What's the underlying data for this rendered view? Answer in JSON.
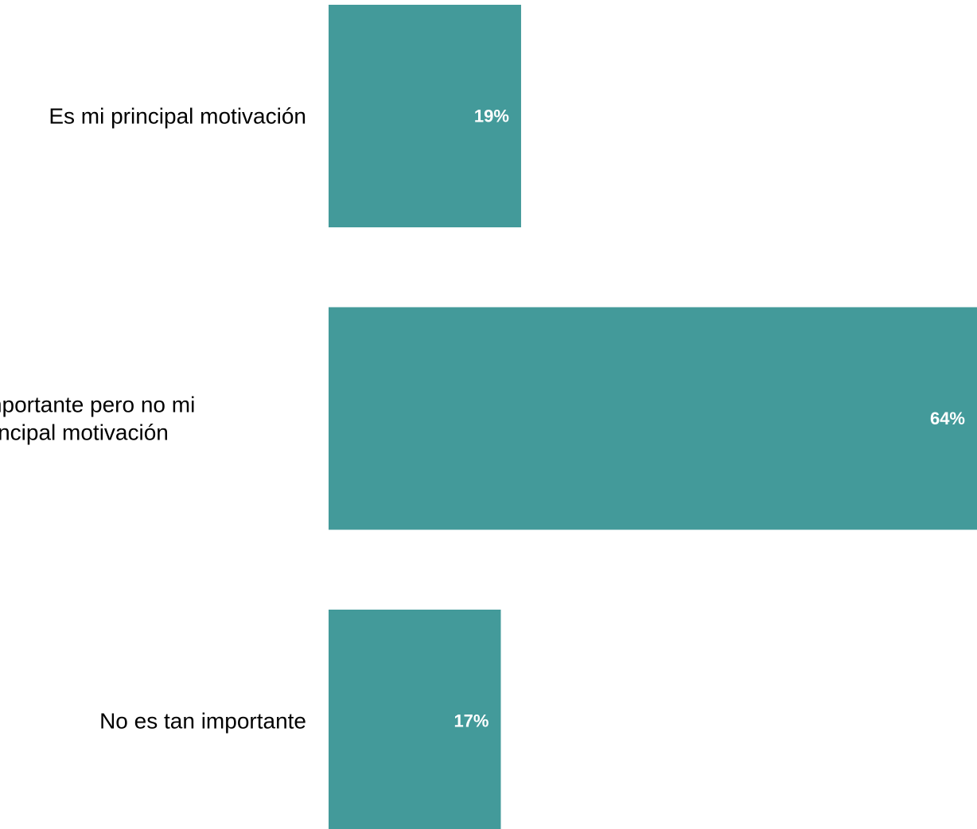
{
  "chart_data": {
    "type": "bar",
    "orientation": "horizontal",
    "categories": [
      [
        "Es mi principal motivación"
      ],
      [
        "Es importante pero no mi",
        "principal motivación"
      ],
      [
        "No es tan importante"
      ]
    ],
    "values": [
      19,
      64,
      17
    ],
    "value_labels": [
      "19%",
      "64%",
      "17%"
    ],
    "unit": "%",
    "xlim": [
      0,
      64
    ],
    "title": "",
    "xlabel": "",
    "ylabel": "",
    "grid": false,
    "legend": "none",
    "bar_color": "#439a9a",
    "label_color": "#ffffff"
  }
}
